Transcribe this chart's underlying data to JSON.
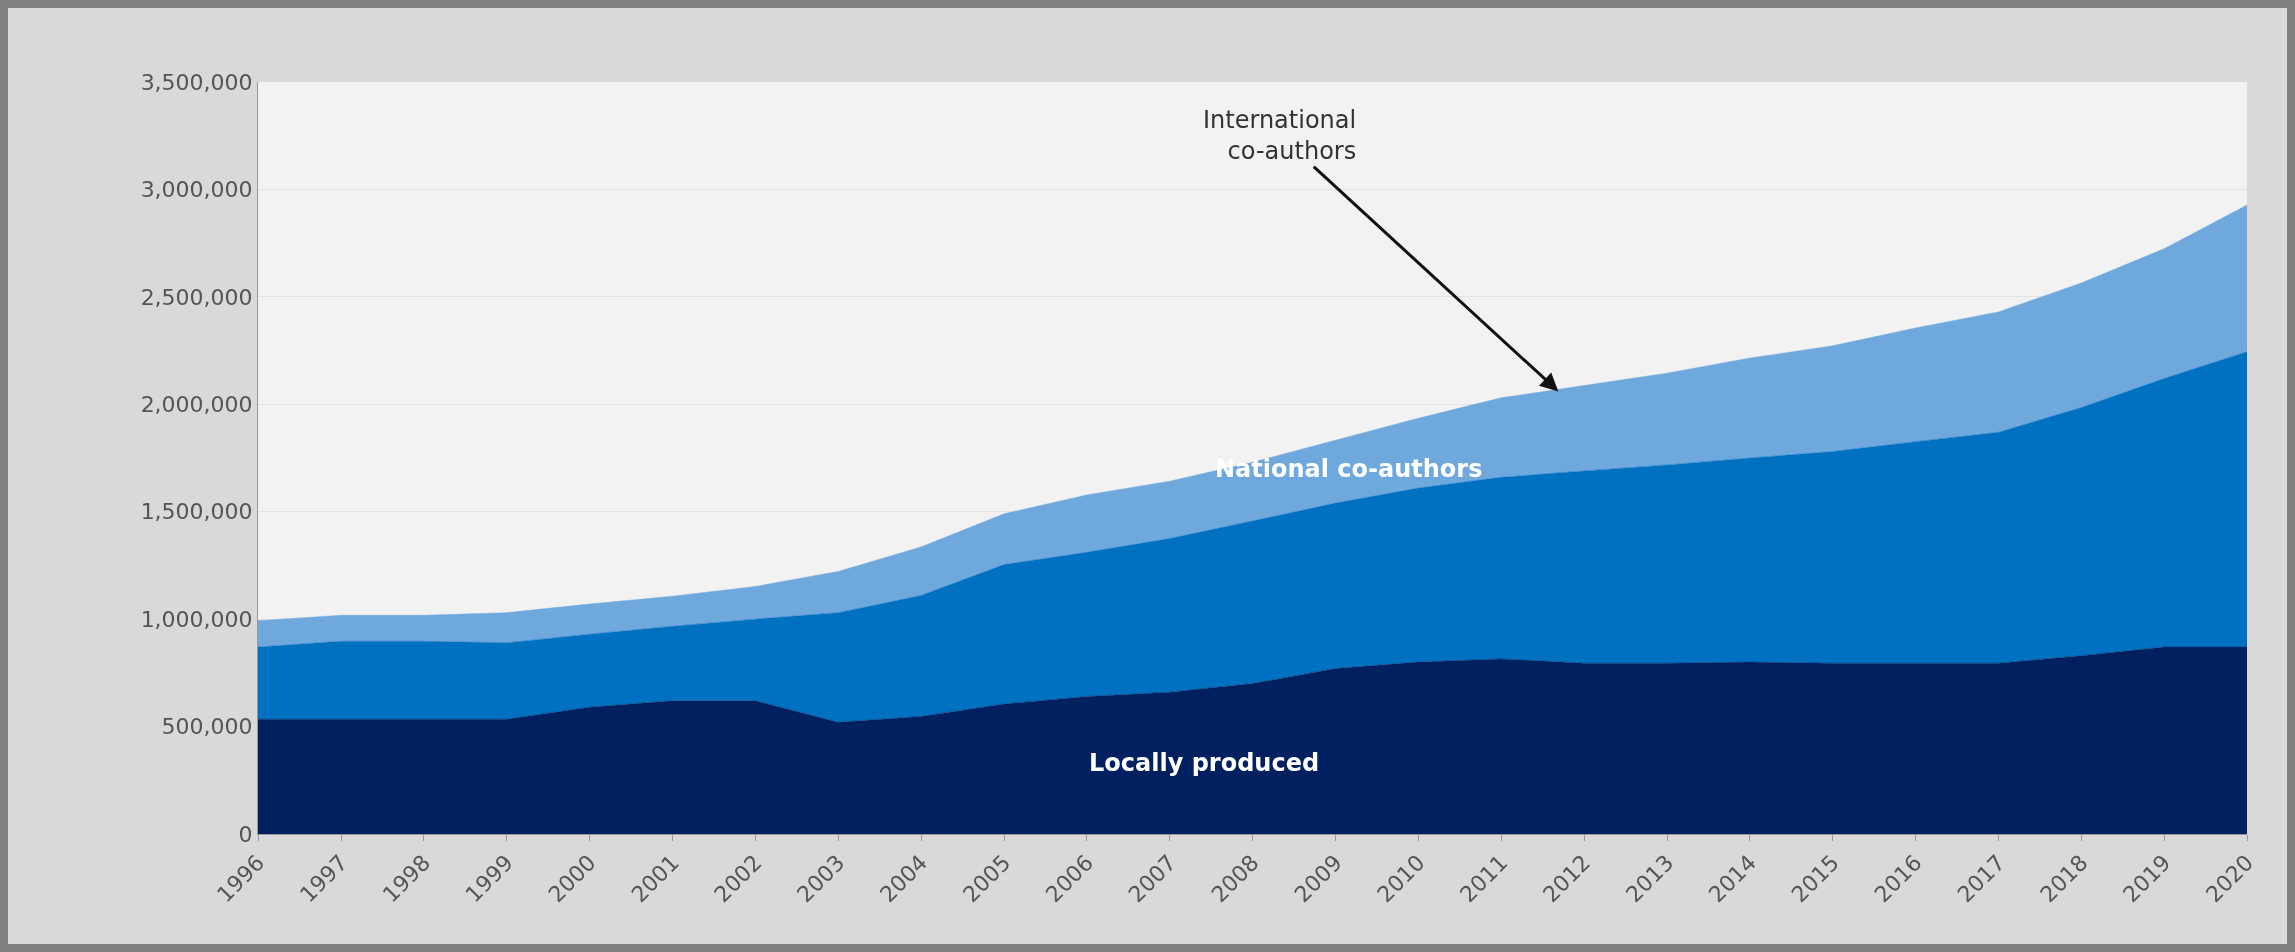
{
  "chart_data": {
    "type": "area",
    "stacked": true,
    "x": [
      "1996",
      "1997",
      "1998",
      "1999",
      "2000",
      "2001",
      "2002",
      "2003",
      "2004",
      "2005",
      "2006",
      "2007",
      "2008",
      "2009",
      "2010",
      "2011",
      "2012",
      "2013",
      "2014",
      "2015",
      "2016",
      "2017",
      "2018",
      "2019",
      "2020"
    ],
    "series": [
      {
        "name": "Locally produced",
        "color": "#002060",
        "values": [
          534000,
          534000,
          534000,
          534000,
          590000,
          620000,
          620000,
          520000,
          547000,
          605000,
          640000,
          660000,
          700000,
          770000,
          800000,
          815000,
          795000,
          795000,
          800000,
          795000,
          795000,
          795000,
          830000,
          870000,
          870000
        ]
      },
      {
        "name": "National co-authors",
        "color": "#0070c0",
        "values": [
          336000,
          363000,
          363000,
          356000,
          340000,
          347000,
          380000,
          510000,
          563000,
          649000,
          671000,
          715000,
          757000,
          770000,
          810000,
          845000,
          895000,
          923000,
          950000,
          985000,
          1031000,
          1075000,
          1155000,
          1250000,
          1375000
        ]
      },
      {
        "name": "International\nco-authors",
        "color": "#6fa8dc",
        "values": [
          123000,
          121000,
          121000,
          140000,
          140000,
          140000,
          152000,
          192000,
          226000,
          236000,
          267000,
          267000,
          273000,
          293000,
          325000,
          370000,
          397000,
          427000,
          465000,
          492000,
          529000,
          560000,
          580000,
          604000,
          682000
        ]
      }
    ],
    "ylim": [
      0,
      3500000
    ],
    "yticks": [
      0,
      {
        "value": 500000,
        "label": "500,000"
      },
      {
        "value": 1000000,
        "label": "1,000,000"
      },
      {
        "value": 1500000,
        "label": "1,500,000"
      },
      {
        "value": 2000000,
        "label": "2,000,000"
      },
      {
        "value": 2500000,
        "label": "2,500,000"
      },
      {
        "value": 3000000,
        "label": "3,000,000"
      },
      {
        "value": 3500000,
        "label": "3,500,000"
      }
    ],
    "xlim": [
      "1996",
      "2020"
    ],
    "xticks": [
      "1996",
      "1997",
      "1998",
      "1999",
      "2000",
      "2001",
      "2002",
      "2003",
      "2004",
      "2005",
      "2006",
      "2007",
      "2008",
      "2009",
      "2010",
      "2011",
      "2012",
      "2013",
      "2014",
      "2015",
      "2016",
      "2017",
      "2018",
      "2019",
      "2020"
    ],
    "grid": "y",
    "legend": false
  }
}
